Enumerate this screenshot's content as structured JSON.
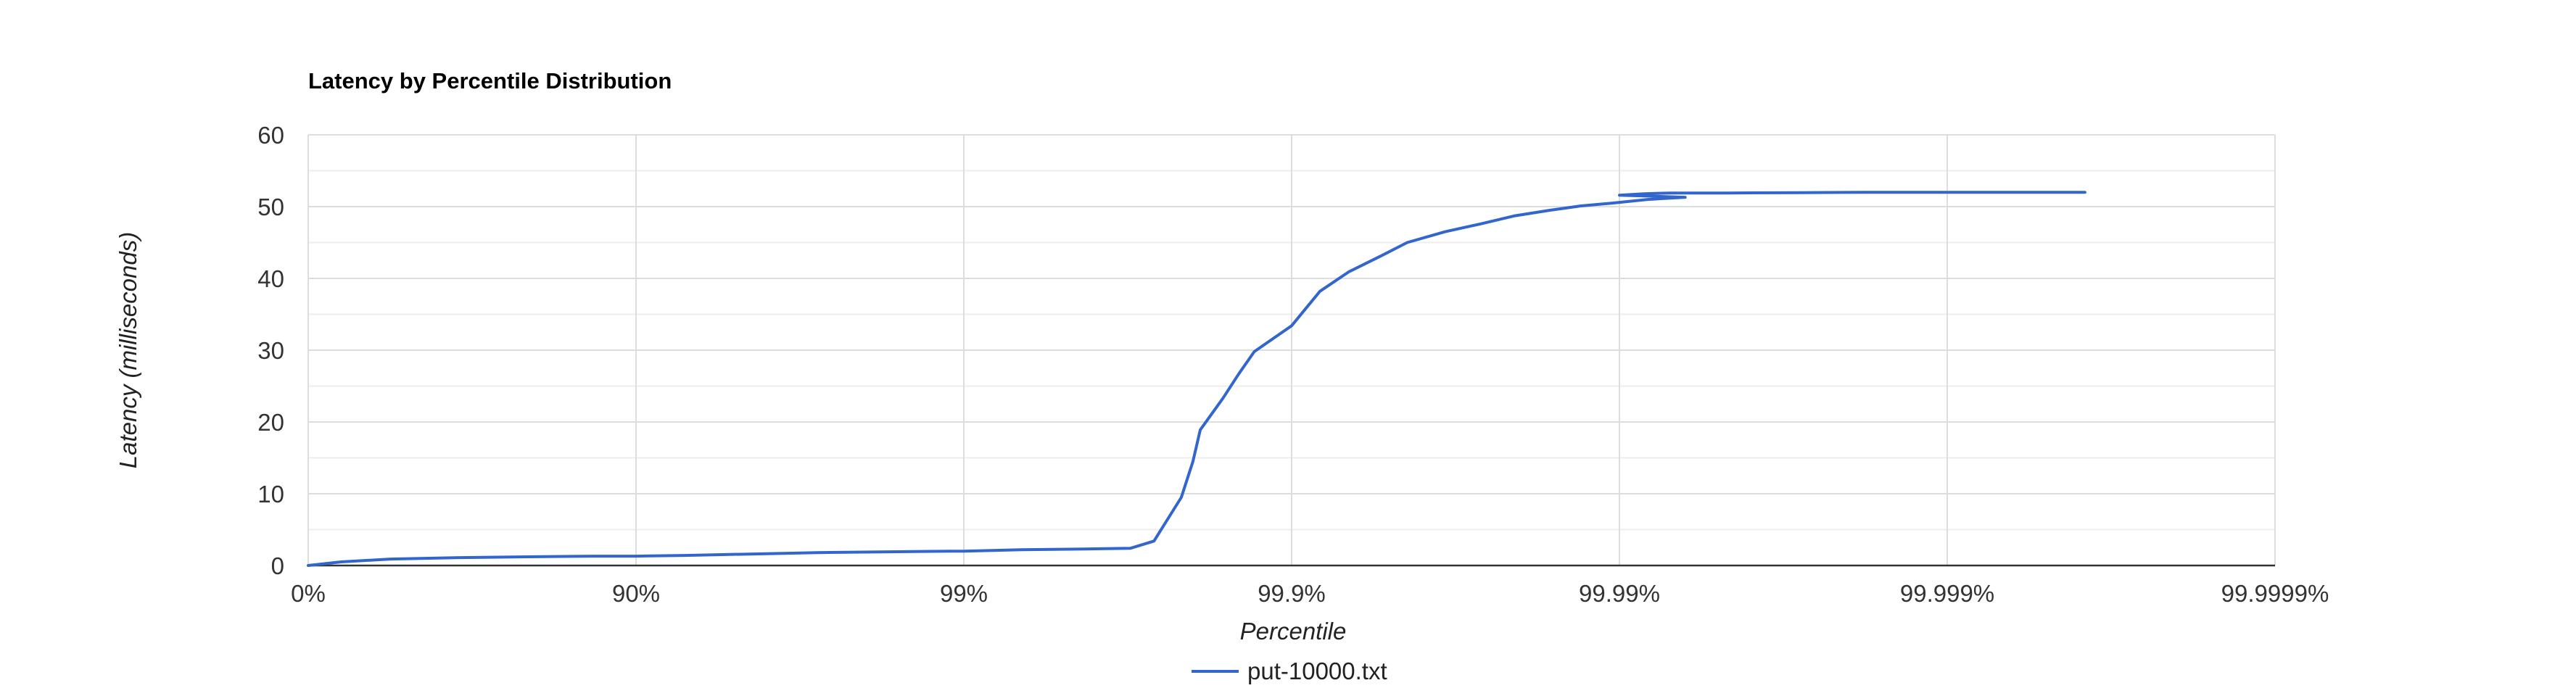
{
  "chart_data": {
    "type": "line",
    "title": "Latency by Percentile Distribution",
    "xlabel": "Percentile",
    "ylabel": "Latency (milliseconds)",
    "x_scale": "log_inverse_percentile",
    "x_ticks": [
      "0%",
      "90%",
      "99%",
      "99.9%",
      "99.99%",
      "99.999%",
      "99.9999%"
    ],
    "x_range": [
      0,
      99.9999
    ],
    "y_ticks": [
      "0",
      "10",
      "20",
      "30",
      "40",
      "50",
      "60"
    ],
    "ylim": [
      0,
      60
    ],
    "grid": true,
    "legend_position": "bottom",
    "colors": {
      "series": "#3366cc",
      "grid": "#dddddd",
      "minor_grid": "#eeeeee",
      "baseline": "#333333"
    },
    "series": [
      {
        "name": "put-10000.txt",
        "percentile": [
          0,
          20.6,
          43.8,
          65.4,
          77.4,
          86.5,
          90,
          92.9,
          95.5,
          97.2,
          98.2,
          98.9,
          99.0,
          99.33,
          99.57,
          99.69,
          99.737,
          99.783,
          99.8,
          99.81,
          99.838,
          99.855,
          99.87,
          99.9,
          99.918,
          99.933,
          99.947,
          99.9556,
          99.966,
          99.9735,
          99.979,
          99.9837,
          99.9869,
          99.9895,
          99.9918,
          99.9937,
          99.99,
          99.9916,
          99.993,
          99.9953,
          99.9972,
          99.9982,
          99.99894,
          99.99937,
          99.99962
        ],
        "latency_ms": [
          0,
          0.5,
          0.9,
          1.1,
          1.2,
          1.3,
          1.3,
          1.4,
          1.6,
          1.8,
          1.9,
          2.0,
          2.0,
          2.2,
          2.3,
          2.4,
          3.4,
          9.5,
          14.5,
          18.9,
          23.3,
          26.7,
          29.8,
          33.4,
          38.2,
          40.9,
          43.2,
          45.0,
          46.5,
          47.6,
          48.7,
          49.5,
          50.1,
          50.5,
          51.0,
          51.3,
          51.6,
          51.8,
          51.9,
          51.9,
          51.95,
          52.0,
          52.0,
          52.0,
          52.0
        ]
      }
    ]
  }
}
